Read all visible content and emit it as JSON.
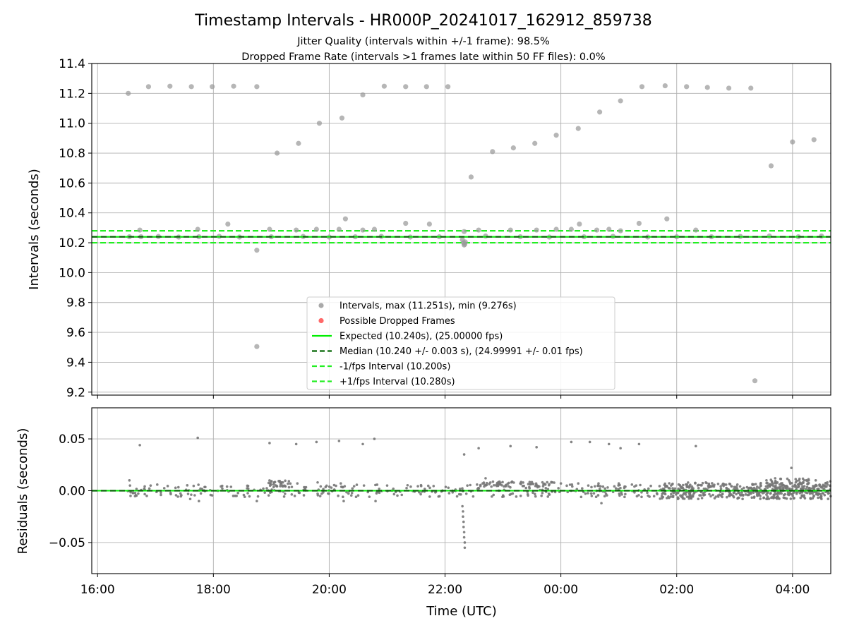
{
  "chart_data": [
    {
      "type": "scatter",
      "title": "Timestamp Intervals - HR000P_20241017_162912_859738",
      "subtitle_lines": [
        "Jitter Quality (intervals within +/-1 frame): 98.5%",
        "Dropped Frame Rate (intervals >1 frames late within 50 FF files): 0.0%"
      ],
      "ylabel": "Intervals (seconds)",
      "ylim": [
        9.18,
        11.4
      ],
      "yticks": [
        9.2,
        9.4,
        9.6,
        9.8,
        10.0,
        10.2,
        10.4,
        10.6,
        10.8,
        11.0,
        11.2,
        11.4
      ],
      "ytick_labels": [
        "9.2",
        "9.4",
        "9.6",
        "9.8",
        "10.0",
        "10.2",
        "10.4",
        "10.6",
        "10.8",
        "11.0",
        "11.2",
        "11.4"
      ],
      "xlim_hours": [
        15.9,
        28.66
      ],
      "xticks_hours": [
        16,
        18,
        20,
        22,
        24,
        26,
        28
      ],
      "grid": true,
      "legend_placement": "lower center",
      "legend": [
        {
          "label": "Intervals, max (11.251s), min (9.276s)",
          "kind": "dot",
          "color": "#9a9a9a"
        },
        {
          "label": "Possible Dropped Frames",
          "kind": "dot",
          "color": "#ff4d4d"
        },
        {
          "label": "Expected (10.240s), (25.00000 fps)",
          "kind": "solid",
          "color": "#00ee00"
        },
        {
          "label": "Median (10.240 +/- 0.003 s), (24.99991 +/- 0.01 fps)",
          "kind": "dash",
          "color": "#006400"
        },
        {
          "label": "-1/fps Interval (10.200s)",
          "kind": "dash",
          "color": "#22ee22"
        },
        {
          "label": "+1/fps Interval (10.280s)",
          "kind": "dash",
          "color": "#22ee22"
        }
      ],
      "reference_lines": {
        "expected": 10.24,
        "median": 10.24,
        "minus_interval": 10.2,
        "plus_interval": 10.28,
        "median_band": [
          10.237,
          10.243
        ]
      },
      "series": [
        {
          "name": "Intervals",
          "color": "#9a9a9a",
          "points": [
            [
              16.53,
              11.2
            ],
            [
              16.88,
              11.245
            ],
            [
              17.25,
              11.248
            ],
            [
              17.62,
              11.245
            ],
            [
              17.98,
              11.245
            ],
            [
              18.35,
              11.248
            ],
            [
              18.75,
              11.245
            ],
            [
              19.1,
              10.8
            ],
            [
              19.47,
              10.865
            ],
            [
              19.83,
              11.0
            ],
            [
              20.22,
              11.035
            ],
            [
              20.58,
              11.19
            ],
            [
              20.95,
              11.248
            ],
            [
              21.32,
              11.245
            ],
            [
              21.68,
              11.245
            ],
            [
              22.05,
              11.245
            ],
            [
              22.45,
              10.64
            ],
            [
              22.82,
              10.81
            ],
            [
              23.18,
              10.835
            ],
            [
              23.55,
              10.865
            ],
            [
              23.92,
              10.92
            ],
            [
              24.3,
              10.965
            ],
            [
              24.67,
              11.075
            ],
            [
              25.03,
              11.15
            ],
            [
              25.4,
              11.245
            ],
            [
              25.8,
              11.251
            ],
            [
              26.17,
              11.245
            ],
            [
              26.53,
              11.24
            ],
            [
              26.9,
              11.235
            ],
            [
              27.28,
              11.235
            ],
            [
              27.63,
              10.715
            ],
            [
              28.0,
              10.875
            ],
            [
              28.37,
              10.89
            ],
            [
              16.73,
              10.285
            ],
            [
              17.73,
              10.29
            ],
            [
              18.25,
              10.325
            ],
            [
              18.75,
              10.15
            ],
            [
              18.97,
              10.29
            ],
            [
              19.43,
              10.285
            ],
            [
              19.78,
              10.29
            ],
            [
              20.17,
              10.29
            ],
            [
              20.28,
              10.36
            ],
            [
              20.58,
              10.285
            ],
            [
              20.78,
              10.29
            ],
            [
              21.32,
              10.33
            ],
            [
              21.73,
              10.325
            ],
            [
              22.33,
              10.275
            ],
            [
              22.58,
              10.285
            ],
            [
              23.13,
              10.285
            ],
            [
              23.58,
              10.285
            ],
            [
              23.92,
              10.29
            ],
            [
              24.18,
              10.29
            ],
            [
              24.32,
              10.325
            ],
            [
              24.62,
              10.285
            ],
            [
              24.83,
              10.29
            ],
            [
              25.03,
              10.28
            ],
            [
              25.35,
              10.33
            ],
            [
              25.83,
              10.36
            ],
            [
              26.33,
              10.285
            ],
            [
              18.75,
              9.505
            ],
            [
              27.35,
              9.276
            ],
            [
              16.55,
              10.24
            ],
            [
              16.75,
              10.24
            ],
            [
              17.05,
              10.242
            ],
            [
              17.4,
              10.238
            ],
            [
              17.75,
              10.24
            ],
            [
              18.1,
              10.243
            ],
            [
              18.45,
              10.238
            ],
            [
              19.0,
              10.24
            ],
            [
              19.55,
              10.242
            ],
            [
              20.0,
              10.238
            ],
            [
              20.45,
              10.24
            ],
            [
              20.9,
              10.243
            ],
            [
              21.4,
              10.238
            ],
            [
              21.9,
              10.24
            ],
            [
              22.3,
              10.22
            ],
            [
              22.32,
              10.2
            ],
            [
              22.33,
              10.185
            ],
            [
              22.34,
              10.19
            ],
            [
              22.35,
              10.205
            ],
            [
              22.7,
              10.245
            ],
            [
              23.3,
              10.24
            ],
            [
              23.8,
              10.238
            ],
            [
              24.4,
              10.24
            ],
            [
              24.9,
              10.243
            ],
            [
              25.5,
              10.238
            ],
            [
              26.0,
              10.24
            ],
            [
              26.6,
              10.24
            ],
            [
              27.1,
              10.242
            ],
            [
              27.6,
              10.245
            ],
            [
              28.1,
              10.24
            ],
            [
              28.5,
              10.245
            ]
          ]
        }
      ]
    },
    {
      "type": "scatter",
      "ylabel": "Residuals (seconds)",
      "xlabel": "Time (UTC)",
      "ylim": [
        -0.08,
        0.08
      ],
      "yticks": [
        -0.05,
        0.0,
        0.05
      ],
      "ytick_labels": [
        "−0.05",
        "0.00",
        "0.05"
      ],
      "xlim_hours": [
        15.9,
        28.66
      ],
      "xticks_hours": [
        16,
        18,
        20,
        22,
        24,
        26,
        28
      ],
      "xtick_labels": [
        "16:00",
        "18:00",
        "20:00",
        "22:00",
        "00:00",
        "02:00",
        "04:00"
      ],
      "grid": true,
      "reference_lines": {
        "expected": 0.0,
        "median": 0.0
      },
      "series": [
        {
          "name": "Residuals",
          "color": "#777777",
          "points": [
            [
              16.73,
              0.044
            ],
            [
              17.73,
              0.051
            ],
            [
              18.97,
              0.046
            ],
            [
              19.43,
              0.045
            ],
            [
              19.78,
              0.047
            ],
            [
              20.17,
              0.048
            ],
            [
              20.58,
              0.045
            ],
            [
              20.78,
              0.05
            ],
            [
              22.33,
              0.035
            ],
            [
              22.58,
              0.041
            ],
            [
              23.13,
              0.043
            ],
            [
              23.58,
              0.042
            ],
            [
              24.18,
              0.047
            ],
            [
              24.5,
              0.047
            ],
            [
              24.83,
              0.045
            ],
            [
              25.03,
              0.041
            ],
            [
              25.35,
              0.045
            ],
            [
              26.33,
              0.043
            ],
            [
              22.3,
              -0.015
            ],
            [
              22.31,
              -0.02
            ],
            [
              22.31,
              -0.025
            ],
            [
              22.32,
              -0.03
            ],
            [
              22.32,
              -0.035
            ],
            [
              22.33,
              -0.04
            ],
            [
              22.33,
              -0.045
            ],
            [
              22.34,
              -0.05
            ],
            [
              22.34,
              -0.055
            ],
            [
              16.55,
              0.01
            ],
            [
              16.56,
              0.005
            ],
            [
              16.57,
              -0.005
            ],
            [
              16.85,
              -0.005
            ],
            [
              17.6,
              -0.008
            ],
            [
              17.75,
              -0.01
            ],
            [
              18.4,
              -0.005
            ],
            [
              18.75,
              -0.01
            ],
            [
              19.0,
              0.009
            ],
            [
              19.2,
              0.008
            ],
            [
              19.45,
              0.007
            ],
            [
              19.8,
              0.008
            ],
            [
              20.2,
              0.007
            ],
            [
              20.25,
              -0.01
            ],
            [
              20.6,
              0.005
            ],
            [
              20.8,
              -0.01
            ],
            [
              21.0,
              0.005
            ],
            [
              22.65,
              0.007
            ],
            [
              22.7,
              0.012
            ],
            [
              22.9,
              0.007
            ],
            [
              23.3,
              0.007
            ],
            [
              23.7,
              0.006
            ],
            [
              24.0,
              0.007
            ],
            [
              24.3,
              0.007
            ],
            [
              24.35,
              -0.006
            ],
            [
              24.65,
              0.007
            ],
            [
              24.7,
              -0.012
            ],
            [
              25.0,
              0.007
            ],
            [
              25.1,
              -0.006
            ],
            [
              25.3,
              0.005
            ],
            [
              27.55,
              0.01
            ],
            [
              27.7,
              0.012
            ],
            [
              27.98,
              0.022
            ],
            [
              28.2,
              0.01
            ],
            [
              28.2,
              -0.006
            ],
            [
              28.4,
              0.01
            ],
            [
              28.5,
              -0.008
            ],
            [
              28.6,
              0.008
            ],
            [
              28.65,
              0.009
            ]
          ],
          "clusters": [
            {
              "x_range": [
                16.5,
                28.66
              ],
              "y_range": [
                -0.006,
                0.006
              ],
              "count": 420
            },
            {
              "x_range": [
                25.7,
                28.66
              ],
              "y_range": [
                -0.008,
                0.008
              ],
              "count": 380
            },
            {
              "x_range": [
                27.6,
                28.3
              ],
              "y_range": [
                0.0,
                0.012
              ],
              "count": 60
            },
            {
              "x_range": [
                18.95,
                19.35
              ],
              "y_range": [
                0.004,
                0.01
              ],
              "count": 30
            },
            {
              "x_range": [
                22.6,
                23.2
              ],
              "y_range": [
                0.004,
                0.009
              ],
              "count": 30
            },
            {
              "x_range": [
                23.3,
                23.9
              ],
              "y_range": [
                0.004,
                0.009
              ],
              "count": 25
            }
          ]
        }
      ]
    }
  ]
}
